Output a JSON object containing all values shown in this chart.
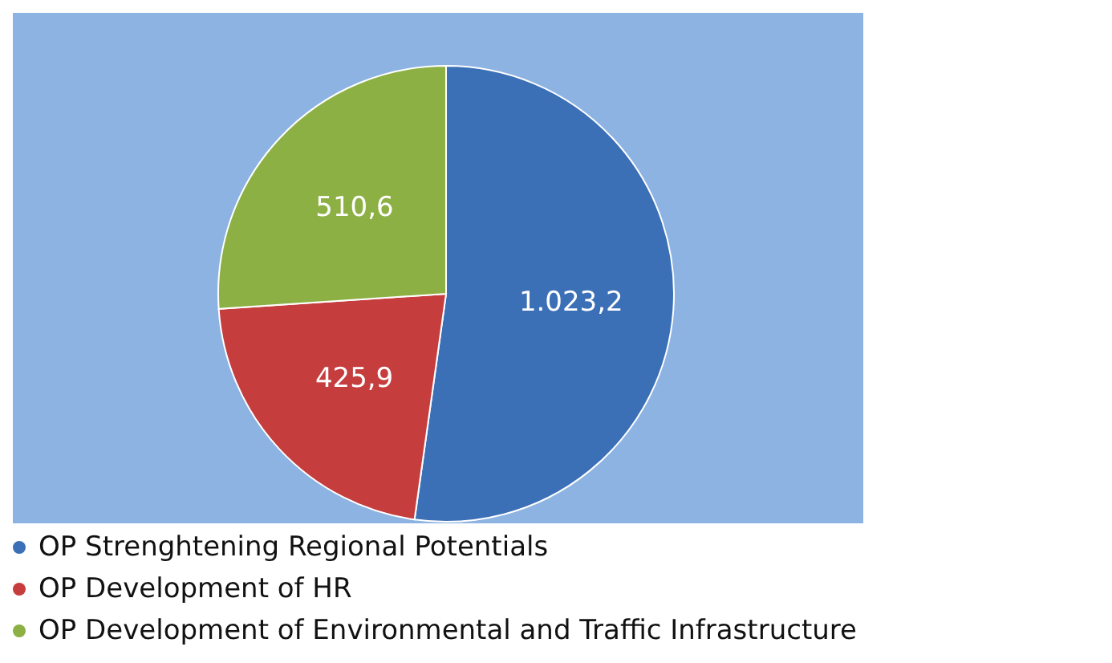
{
  "chart_data": {
    "type": "pie",
    "categories": [
      "OP Strenghtening Regional Potentials",
      "OP Development of HR",
      "OP Development of Environmental and Traffic Infrastructure"
    ],
    "values": [
      1023.2,
      425.9,
      510.6
    ],
    "value_labels": [
      "1.023,2",
      "425,9",
      "510,6"
    ],
    "colors": [
      "#3b6fb6",
      "#c63d3d",
      "#8cb043"
    ],
    "legend": "bottom"
  }
}
